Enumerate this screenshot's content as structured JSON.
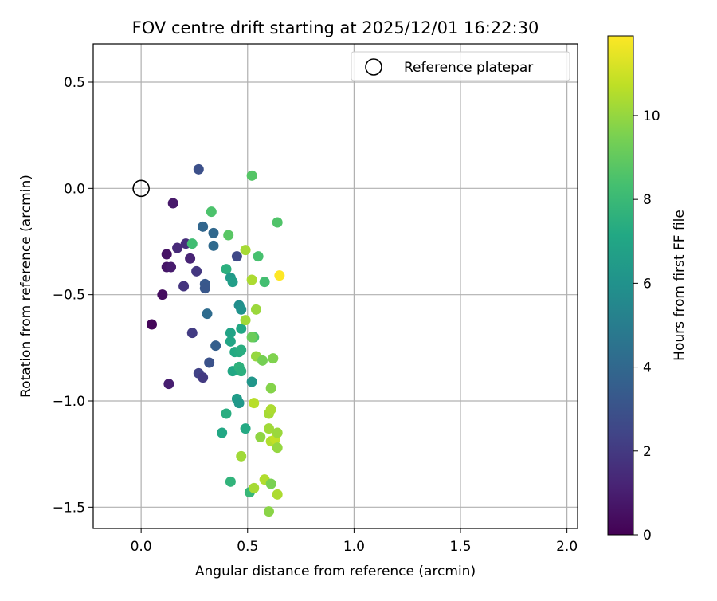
{
  "chart_data": {
    "type": "scatter",
    "title": "FOV centre drift starting at 2025/12/01 16:22:30",
    "xlabel": "Angular distance from reference (arcmin)",
    "ylabel": "Rotation from reference (arcmin)",
    "xlim": [
      -0.225,
      2.05
    ],
    "ylim": [
      -1.6,
      0.68
    ],
    "x_ticks": [
      0.0,
      0.5,
      1.0,
      1.5,
      2.0
    ],
    "x_tick_labels": [
      "0.0",
      "0.5",
      "1.0",
      "1.5",
      "2.0"
    ],
    "y_ticks": [
      -1.5,
      -1.0,
      -0.5,
      0.0,
      0.5
    ],
    "y_tick_labels": [
      "−1.5",
      "−1.0",
      "−0.5",
      "0.0",
      "0.5"
    ],
    "grid": true,
    "legend": {
      "position": "top-right",
      "entries": [
        "Reference platepar"
      ]
    },
    "reference_point": {
      "x": 0.0,
      "y": 0.0
    },
    "colorbar": {
      "label": "Hours from first FF file",
      "range": [
        0,
        11.9
      ],
      "ticks": [
        0,
        2,
        4,
        6,
        8,
        10
      ],
      "tick_labels": [
        "0",
        "2",
        "4",
        "6",
        "8",
        "10"
      ],
      "colormap": "viridis"
    },
    "points": [
      {
        "x": 0.05,
        "y": -0.64,
        "h": 0.2
      },
      {
        "x": 0.1,
        "y": -0.5,
        "h": 0.4
      },
      {
        "x": 0.12,
        "y": -0.31,
        "h": 0.6
      },
      {
        "x": 0.12,
        "y": -0.37,
        "h": 0.7
      },
      {
        "x": 0.14,
        "y": -0.37,
        "h": 0.9
      },
      {
        "x": 0.15,
        "y": -0.07,
        "h": 0.8
      },
      {
        "x": 0.13,
        "y": -0.92,
        "h": 1.0
      },
      {
        "x": 0.17,
        "y": -0.28,
        "h": 1.4
      },
      {
        "x": 0.21,
        "y": -0.26,
        "h": 1.6
      },
      {
        "x": 0.23,
        "y": -0.33,
        "h": 1.2
      },
      {
        "x": 0.2,
        "y": -0.46,
        "h": 1.8
      },
      {
        "x": 0.26,
        "y": -0.39,
        "h": 1.9
      },
      {
        "x": 0.24,
        "y": -0.68,
        "h": 2.1
      },
      {
        "x": 0.27,
        "y": -0.87,
        "h": 2.3
      },
      {
        "x": 0.29,
        "y": -0.89,
        "h": 2.0
      },
      {
        "x": 0.27,
        "y": 0.09,
        "h": 2.9
      },
      {
        "x": 0.3,
        "y": -0.45,
        "h": 3.3
      },
      {
        "x": 0.3,
        "y": -0.47,
        "h": 3.2
      },
      {
        "x": 0.32,
        "y": -0.82,
        "h": 3.0
      },
      {
        "x": 0.29,
        "y": -0.18,
        "h": 3.9
      },
      {
        "x": 0.34,
        "y": -0.21,
        "h": 4.0
      },
      {
        "x": 0.34,
        "y": -0.27,
        "h": 4.1
      },
      {
        "x": 0.31,
        "y": -0.59,
        "h": 4.2
      },
      {
        "x": 0.35,
        "y": -0.74,
        "h": 3.6
      },
      {
        "x": 0.45,
        "y": -0.32,
        "h": 2.6
      },
      {
        "x": 0.24,
        "y": -0.26,
        "h": 8.2
      },
      {
        "x": 0.33,
        "y": -0.11,
        "h": 8.5
      },
      {
        "x": 0.4,
        "y": -0.38,
        "h": 7.5
      },
      {
        "x": 0.42,
        "y": -0.42,
        "h": 6.4
      },
      {
        "x": 0.43,
        "y": -0.44,
        "h": 6.6
      },
      {
        "x": 0.46,
        "y": -0.55,
        "h": 5.8
      },
      {
        "x": 0.47,
        "y": -0.57,
        "h": 6.0
      },
      {
        "x": 0.42,
        "y": -0.68,
        "h": 6.9
      },
      {
        "x": 0.47,
        "y": -0.66,
        "h": 7.1
      },
      {
        "x": 0.42,
        "y": -0.72,
        "h": 7.0
      },
      {
        "x": 0.44,
        "y": -0.77,
        "h": 7.2
      },
      {
        "x": 0.46,
        "y": -0.77,
        "h": 7.3
      },
      {
        "x": 0.47,
        "y": -0.76,
        "h": 7.4
      },
      {
        "x": 0.43,
        "y": -0.86,
        "h": 7.1
      },
      {
        "x": 0.46,
        "y": -0.84,
        "h": 7.6
      },
      {
        "x": 0.47,
        "y": -0.86,
        "h": 7.5
      },
      {
        "x": 0.45,
        "y": -0.99,
        "h": 6.5
      },
      {
        "x": 0.46,
        "y": -1.01,
        "h": 6.3
      },
      {
        "x": 0.52,
        "y": -0.91,
        "h": 6.2
      },
      {
        "x": 0.4,
        "y": -1.06,
        "h": 7.4
      },
      {
        "x": 0.38,
        "y": -1.15,
        "h": 7.1
      },
      {
        "x": 0.49,
        "y": -1.13,
        "h": 7.2
      },
      {
        "x": 0.42,
        "y": -1.38,
        "h": 7.7
      },
      {
        "x": 0.51,
        "y": -1.43,
        "h": 7.9
      },
      {
        "x": 0.41,
        "y": -0.22,
        "h": 8.8
      },
      {
        "x": 0.52,
        "y": 0.06,
        "h": 8.7
      },
      {
        "x": 0.64,
        "y": -0.16,
        "h": 8.6
      },
      {
        "x": 0.55,
        "y": -0.32,
        "h": 8.4
      },
      {
        "x": 0.58,
        "y": -0.44,
        "h": 8.3
      },
      {
        "x": 0.53,
        "y": -0.7,
        "h": 8.5
      },
      {
        "x": 0.49,
        "y": -0.29,
        "h": 10.3
      },
      {
        "x": 0.52,
        "y": -0.43,
        "h": 10.4
      },
      {
        "x": 0.65,
        "y": -0.41,
        "h": 11.9
      },
      {
        "x": 0.54,
        "y": -0.57,
        "h": 10.1
      },
      {
        "x": 0.49,
        "y": -0.62,
        "h": 10.2
      },
      {
        "x": 0.52,
        "y": -0.7,
        "h": 9.2
      },
      {
        "x": 0.54,
        "y": -0.79,
        "h": 10.0
      },
      {
        "x": 0.57,
        "y": -0.81,
        "h": 9.4
      },
      {
        "x": 0.62,
        "y": -0.8,
        "h": 9.6
      },
      {
        "x": 0.61,
        "y": -0.94,
        "h": 9.7
      },
      {
        "x": 0.53,
        "y": -1.01,
        "h": 10.6
      },
      {
        "x": 0.6,
        "y": -1.06,
        "h": 10.3
      },
      {
        "x": 0.61,
        "y": -1.04,
        "h": 10.4
      },
      {
        "x": 0.6,
        "y": -1.13,
        "h": 10.2
      },
      {
        "x": 0.56,
        "y": -1.17,
        "h": 9.9
      },
      {
        "x": 0.61,
        "y": -1.19,
        "h": 10.5
      },
      {
        "x": 0.63,
        "y": -1.18,
        "h": 10.8
      },
      {
        "x": 0.64,
        "y": -1.15,
        "h": 10.1
      },
      {
        "x": 0.64,
        "y": -1.22,
        "h": 10.0
      },
      {
        "x": 0.47,
        "y": -1.26,
        "h": 10.2
      },
      {
        "x": 0.58,
        "y": -1.37,
        "h": 10.5
      },
      {
        "x": 0.61,
        "y": -1.39,
        "h": 9.5
      },
      {
        "x": 0.53,
        "y": -1.41,
        "h": 10.3
      },
      {
        "x": 0.64,
        "y": -1.44,
        "h": 10.4
      },
      {
        "x": 0.6,
        "y": -1.52,
        "h": 9.8
      }
    ]
  }
}
